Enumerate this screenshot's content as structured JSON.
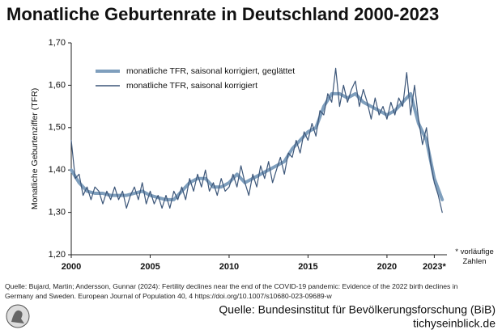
{
  "chart_data": {
    "type": "line",
    "title": "Monatliche Geburtenrate in Deutschland 2000-2023",
    "y_label": "Monatliche Geburtenziffer (TFR)",
    "annotation": "* vorläufige Zahlen",
    "xlim": [
      2000,
      2023.8
    ],
    "xticks": [
      2000,
      2005,
      2010,
      2015,
      2020,
      {
        "value": 2023,
        "label": "2023*"
      }
    ],
    "ylim": [
      1.2,
      1.7
    ],
    "yticks": [
      {
        "value": 1.2,
        "label": "1,20"
      },
      {
        "value": 1.3,
        "label": "1,30"
      },
      {
        "value": 1.4,
        "label": "1,40"
      },
      {
        "value": 1.5,
        "label": "1,50"
      },
      {
        "value": 1.6,
        "label": "1,60"
      },
      {
        "value": 1.7,
        "label": "1,70"
      }
    ],
    "legend": "top-left",
    "series": [
      {
        "name": "monatliche TFR, saisonal korrigiert, geglättet",
        "color": "#7f9fbd",
        "x": [
          2000,
          2000.5,
          2001,
          2001.5,
          2002,
          2002.5,
          2003,
          2003.5,
          2004,
          2004.5,
          2005,
          2005.5,
          2006,
          2006.5,
          2007,
          2007.5,
          2008,
          2008.5,
          2009,
          2009.5,
          2010,
          2010.5,
          2011,
          2011.5,
          2012,
          2012.5,
          2013,
          2013.5,
          2014,
          2014.5,
          2015,
          2015.5,
          2016,
          2016.5,
          2017,
          2017.5,
          2018,
          2018.5,
          2019,
          2019.5,
          2020,
          2020.5,
          2021,
          2021.5,
          2022,
          2022.5,
          2023,
          2023.5
        ],
        "values": [
          1.4,
          1.37,
          1.35,
          1.345,
          1.345,
          1.34,
          1.34,
          1.34,
          1.345,
          1.35,
          1.34,
          1.335,
          1.33,
          1.33,
          1.35,
          1.37,
          1.38,
          1.38,
          1.36,
          1.36,
          1.37,
          1.39,
          1.37,
          1.38,
          1.39,
          1.4,
          1.41,
          1.42,
          1.45,
          1.47,
          1.49,
          1.5,
          1.55,
          1.58,
          1.58,
          1.57,
          1.58,
          1.56,
          1.55,
          1.54,
          1.53,
          1.54,
          1.56,
          1.58,
          1.51,
          1.47,
          1.38,
          1.33
        ]
      },
      {
        "name": "monatliche TFR, saisonal korrigiert",
        "color": "#3b5578",
        "x": [
          2000,
          2000.25,
          2000.5,
          2000.75,
          2001,
          2001.25,
          2001.5,
          2001.75,
          2002,
          2002.25,
          2002.5,
          2002.75,
          2003,
          2003.25,
          2003.5,
          2003.75,
          2004,
          2004.25,
          2004.5,
          2004.75,
          2005,
          2005.25,
          2005.5,
          2005.75,
          2006,
          2006.25,
          2006.5,
          2006.75,
          2007,
          2007.25,
          2007.5,
          2007.75,
          2008,
          2008.25,
          2008.5,
          2008.75,
          2009,
          2009.25,
          2009.5,
          2009.75,
          2010,
          2010.25,
          2010.5,
          2010.75,
          2011,
          2011.25,
          2011.5,
          2011.75,
          2012,
          2012.25,
          2012.5,
          2012.75,
          2013,
          2013.25,
          2013.5,
          2013.75,
          2014,
          2014.25,
          2014.5,
          2014.75,
          2015,
          2015.25,
          2015.5,
          2015.75,
          2016,
          2016.25,
          2016.5,
          2016.75,
          2017,
          2017.25,
          2017.5,
          2017.75,
          2018,
          2018.25,
          2018.5,
          2018.75,
          2019,
          2019.25,
          2019.5,
          2019.75,
          2020,
          2020.25,
          2020.5,
          2020.75,
          2021,
          2021.25,
          2021.5,
          2021.75,
          2022,
          2022.25,
          2022.5,
          2022.75,
          2023,
          2023.25,
          2023.5
        ],
        "values": [
          1.47,
          1.38,
          1.39,
          1.34,
          1.36,
          1.33,
          1.36,
          1.35,
          1.32,
          1.35,
          1.33,
          1.36,
          1.33,
          1.35,
          1.31,
          1.34,
          1.36,
          1.33,
          1.37,
          1.32,
          1.35,
          1.32,
          1.34,
          1.31,
          1.34,
          1.31,
          1.35,
          1.33,
          1.36,
          1.33,
          1.38,
          1.35,
          1.39,
          1.36,
          1.4,
          1.35,
          1.37,
          1.34,
          1.38,
          1.35,
          1.36,
          1.39,
          1.36,
          1.41,
          1.37,
          1.34,
          1.39,
          1.36,
          1.41,
          1.38,
          1.42,
          1.37,
          1.4,
          1.43,
          1.39,
          1.44,
          1.43,
          1.47,
          1.44,
          1.49,
          1.47,
          1.51,
          1.48,
          1.54,
          1.53,
          1.58,
          1.56,
          1.64,
          1.55,
          1.6,
          1.56,
          1.59,
          1.61,
          1.55,
          1.59,
          1.56,
          1.52,
          1.57,
          1.53,
          1.55,
          1.52,
          1.56,
          1.53,
          1.57,
          1.55,
          1.63,
          1.53,
          1.6,
          1.52,
          1.46,
          1.5,
          1.42,
          1.37,
          1.34,
          1.3
        ]
      }
    ]
  },
  "footer": {
    "note": "Quelle: Bujard, Martin; Andersson, Gunnar (2024): Fertility declines near the end of the COVID-19 pandemic: Evidence of the 2022 birth declines in Germany and Sweden. European Journal of Population 40, 4 https://doi.org/10.1007/s10680-023-09689-w",
    "source": "Quelle: Bundesinstitut für Bevölkerungsforschung (BiB)",
    "site": "tichyseinblick.de"
  }
}
